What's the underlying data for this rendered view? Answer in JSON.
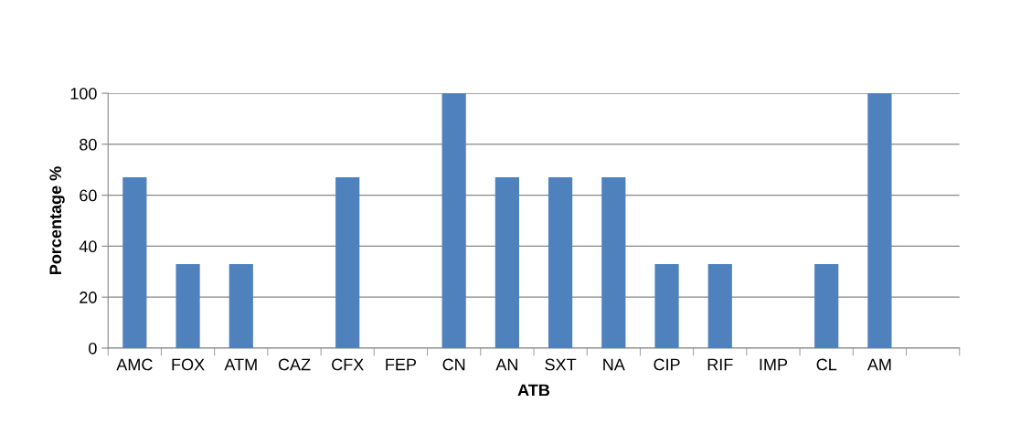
{
  "chart_data": {
    "type": "bar",
    "xlabel": "ATB",
    "ylabel": "Porcentage %",
    "categories": [
      "AMC",
      "FOX",
      "ATM",
      "CAZ",
      "CFX",
      "FEP",
      "CN",
      "AN",
      "SXT",
      "NA",
      "CIP",
      "RIF",
      "IMP",
      "CL",
      "AM",
      null
    ],
    "values": [
      67,
      33,
      33,
      0,
      67,
      0,
      100,
      67,
      67,
      67,
      33,
      33,
      0,
      33,
      100,
      null
    ],
    "color": "#4f81bd",
    "ylim": [
      0,
      100
    ],
    "yticks": [
      0,
      20,
      40,
      60,
      80,
      100
    ],
    "grid": "y",
    "legend": false
  }
}
